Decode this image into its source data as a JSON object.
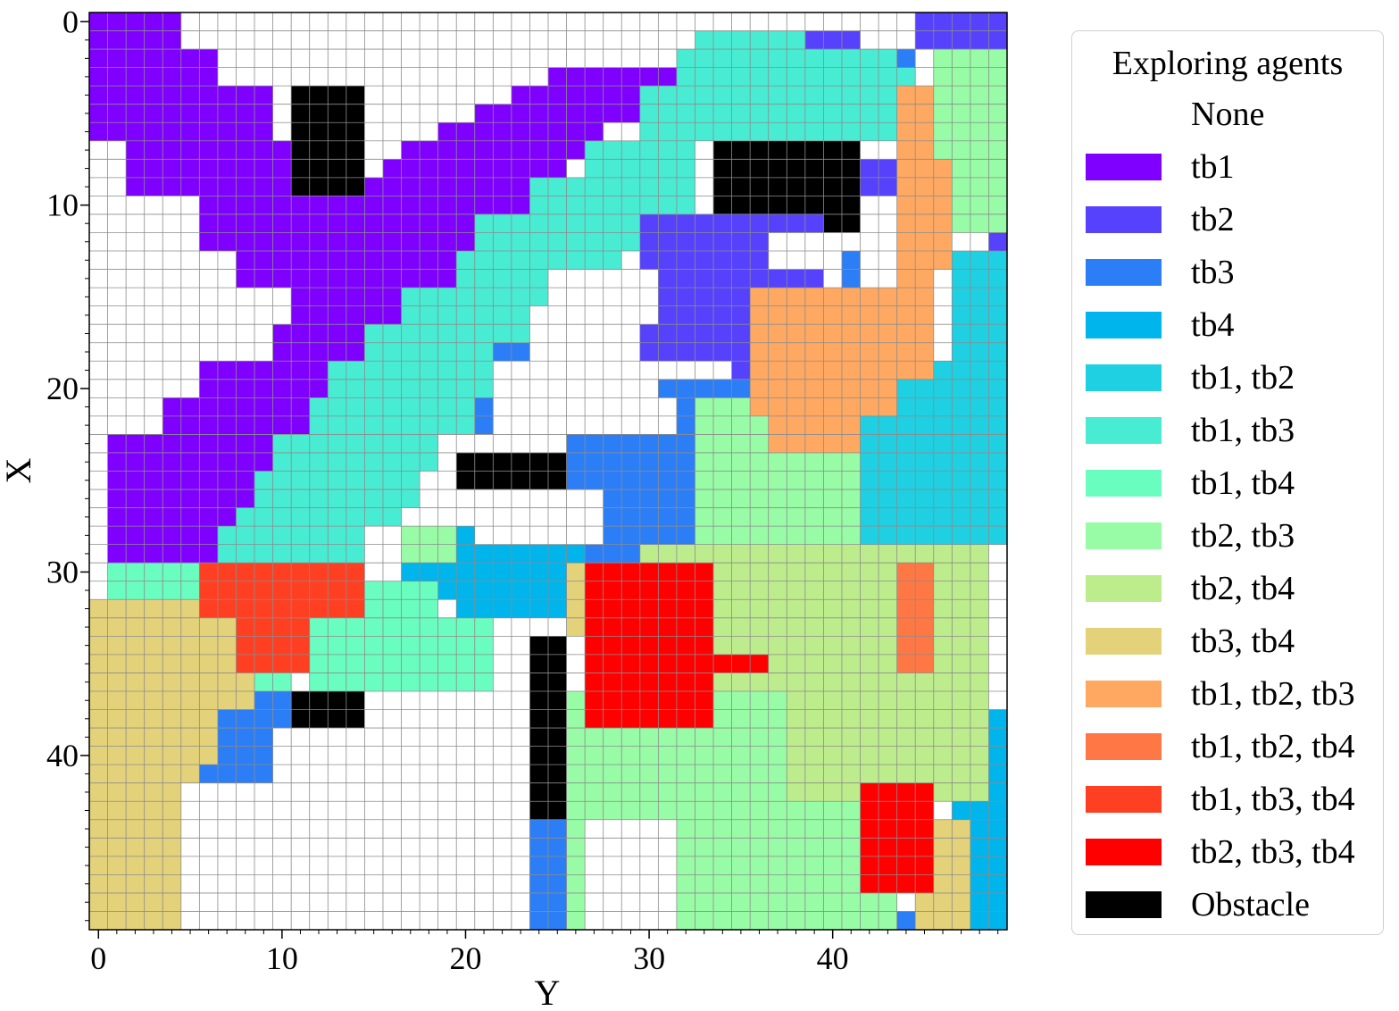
{
  "chart_data": {
    "type": "heatmap",
    "grid_size": [
      50,
      50
    ],
    "xlabel": "Y",
    "ylabel": "X",
    "xticks": [
      0,
      10,
      20,
      30,
      40
    ],
    "yticks": [
      0,
      10,
      20,
      30,
      40
    ],
    "grid": true,
    "legend": {
      "title": "Exploring agents",
      "placement": "outside-right",
      "entries": [
        {
          "label": "None",
          "color": "#ffffff"
        },
        {
          "label": "tb1",
          "color": "#8000ff"
        },
        {
          "label": "tb2",
          "color": "#5641fd"
        },
        {
          "label": "tb3",
          "color": "#2c7ef7"
        },
        {
          "label": "tb4",
          "color": "#00b5eb"
        },
        {
          "label": "tb1, tb2",
          "color": "#1ed0e2"
        },
        {
          "label": "tb1, tb3",
          "color": "#48ecd3"
        },
        {
          "label": "tb1, tb4",
          "color": "#6afdc0"
        },
        {
          "label": "tb2, tb3",
          "color": "#98fca6"
        },
        {
          "label": "tb2, tb4",
          "color": "#bdec8c"
        },
        {
          "label": "tb3, tb4",
          "color": "#e3d27a"
        },
        {
          "label": "tb1, tb2, tb3",
          "color": "#ffa861"
        },
        {
          "label": "tb1, tb2, tb4",
          "color": "#ff7744"
        },
        {
          "label": "tb1, tb3, tb4",
          "color": "#ff3f22"
        },
        {
          "label": "tb2, tb3, tb4",
          "color": "#ff0000"
        },
        {
          "label": "Obstacle",
          "color": "#000000"
        }
      ]
    },
    "regions_note": "cells listed as [row_start,row_end,col_start,col_end] inclusive, value = legend index",
    "regions": [
      [
        0,
        4,
        0,
        4,
        1
      ],
      [
        0,
        5,
        5,
        5,
        1
      ],
      [
        1,
        6,
        6,
        6,
        1
      ],
      [
        2,
        7,
        7,
        7,
        1
      ],
      [
        3,
        8,
        8,
        8,
        1
      ],
      [
        4,
        9,
        9,
        9,
        1
      ],
      [
        5,
        6,
        0,
        8,
        1
      ],
      [
        7,
        9,
        2,
        10,
        1
      ],
      [
        10,
        12,
        6,
        28,
        1
      ],
      [
        9,
        9,
        10,
        24,
        1
      ],
      [
        8,
        8,
        15,
        25,
        1
      ],
      [
        7,
        7,
        17,
        26,
        1
      ],
      [
        6,
        6,
        19,
        27,
        1
      ],
      [
        5,
        5,
        21,
        29,
        1
      ],
      [
        4,
        4,
        23,
        30,
        1
      ],
      [
        3,
        3,
        25,
        31,
        1
      ],
      [
        13,
        14,
        8,
        25,
        1
      ],
      [
        15,
        16,
        11,
        22,
        1
      ],
      [
        17,
        18,
        10,
        20,
        1
      ],
      [
        19,
        20,
        6,
        18,
        1
      ],
      [
        21,
        22,
        4,
        15,
        1
      ],
      [
        23,
        29,
        1,
        13,
        1
      ],
      [
        30,
        30,
        1,
        1,
        1
      ],
      [
        1,
        1,
        33,
        40,
        6
      ],
      [
        2,
        3,
        32,
        44,
        6
      ],
      [
        4,
        6,
        30,
        44,
        6
      ],
      [
        7,
        8,
        27,
        32,
        6
      ],
      [
        9,
        10,
        24,
        32,
        6
      ],
      [
        11,
        12,
        21,
        31,
        6
      ],
      [
        13,
        14,
        20,
        28,
        6
      ],
      [
        15,
        16,
        17,
        26,
        6
      ],
      [
        17,
        18,
        15,
        24,
        6
      ],
      [
        19,
        20,
        13,
        22,
        6
      ],
      [
        21,
        22,
        12,
        21,
        6
      ],
      [
        23,
        24,
        10,
        18,
        6
      ],
      [
        25,
        26,
        9,
        17,
        6
      ],
      [
        27,
        27,
        8,
        16,
        6
      ],
      [
        28,
        29,
        7,
        14,
        6
      ],
      [
        7,
        11,
        34,
        41,
        15
      ],
      [
        4,
        9,
        11,
        14,
        15
      ],
      [
        24,
        25,
        20,
        27,
        15
      ],
      [
        37,
        38,
        7,
        14,
        15
      ],
      [
        34,
        43,
        24,
        25,
        15
      ],
      [
        33,
        42,
        39,
        40,
        15
      ],
      [
        0,
        1,
        45,
        49,
        2
      ],
      [
        1,
        1,
        39,
        41,
        2
      ],
      [
        8,
        9,
        42,
        43,
        2
      ],
      [
        11,
        18,
        30,
        39,
        2
      ],
      [
        19,
        19,
        35,
        35,
        2
      ],
      [
        26,
        28,
        37,
        42,
        2
      ],
      [
        35,
        36,
        46,
        47,
        2
      ],
      [
        12,
        12,
        49,
        49,
        2
      ],
      [
        18,
        18,
        48,
        48,
        2
      ],
      [
        35,
        42,
        38,
        38,
        2
      ],
      [
        2,
        2,
        44,
        44,
        3
      ],
      [
        13,
        14,
        41,
        41,
        3
      ],
      [
        15,
        16,
        40,
        41,
        3
      ],
      [
        18,
        20,
        22,
        23,
        3
      ],
      [
        21,
        22,
        21,
        21,
        3
      ],
      [
        23,
        29,
        26,
        33,
        3
      ],
      [
        20,
        26,
        31,
        35,
        3
      ],
      [
        36,
        49,
        6,
        10,
        3
      ],
      [
        41,
        44,
        3,
        5,
        3
      ],
      [
        44,
        49,
        24,
        26,
        3
      ],
      [
        49,
        49,
        0,
        4,
        3
      ],
      [
        49,
        49,
        34,
        36,
        3
      ],
      [
        49,
        49,
        43,
        44,
        3
      ],
      [
        28,
        32,
        20,
        26,
        4
      ],
      [
        30,
        31,
        17,
        23,
        4
      ],
      [
        32,
        46,
        0,
        1,
        4
      ],
      [
        32,
        34,
        2,
        4,
        4
      ],
      [
        38,
        49,
        48,
        49,
        4
      ],
      [
        41,
        44,
        47,
        47,
        4
      ],
      [
        13,
        28,
        47,
        49,
        5
      ],
      [
        19,
        28,
        42,
        46,
        5
      ],
      [
        21,
        25,
        40,
        42,
        5
      ],
      [
        24,
        27,
        44,
        46,
        5
      ],
      [
        30,
        33,
        1,
        5,
        7
      ],
      [
        33,
        36,
        12,
        21,
        7
      ],
      [
        31,
        33,
        14,
        18,
        7
      ],
      [
        36,
        36,
        7,
        10,
        7
      ],
      [
        21,
        28,
        33,
        39,
        8
      ],
      [
        37,
        49,
        26,
        38,
        8
      ],
      [
        42,
        49,
        39,
        43,
        8
      ],
      [
        2,
        11,
        46,
        49,
        8
      ],
      [
        23,
        28,
        40,
        41,
        8
      ],
      [
        28,
        29,
        17,
        19,
        8
      ],
      [
        29,
        42,
        38,
        48,
        9
      ],
      [
        29,
        36,
        30,
        37,
        9
      ],
      [
        34,
        36,
        29,
        33,
        9
      ],
      [
        36,
        39,
        41,
        47,
        9
      ],
      [
        32,
        49,
        0,
        5,
        10
      ],
      [
        34,
        40,
        2,
        6,
        10
      ],
      [
        30,
        33,
        26,
        30,
        10
      ],
      [
        32,
        37,
        6,
        8,
        10
      ],
      [
        44,
        49,
        45,
        47,
        10
      ],
      [
        4,
        16,
        44,
        45,
        11
      ],
      [
        8,
        13,
        46,
        46,
        11
      ],
      [
        15,
        21,
        36,
        43,
        11
      ],
      [
        20,
        23,
        37,
        41,
        11
      ],
      [
        16,
        19,
        42,
        45,
        11
      ],
      [
        30,
        35,
        44,
        45,
        12
      ],
      [
        30,
        32,
        6,
        14,
        13
      ],
      [
        32,
        35,
        8,
        11,
        13
      ],
      [
        30,
        38,
        27,
        33,
        14
      ],
      [
        35,
        35,
        33,
        36,
        14
      ],
      [
        42,
        47,
        42,
        45,
        14
      ]
    ],
    "white_override": [
      [
        0,
        1,
        5,
        8
      ],
      [
        1,
        3,
        7,
        9
      ],
      [
        4,
        6,
        12,
        14
      ],
      [
        5,
        8,
        14,
        15
      ],
      [
        19,
        20,
        22,
        29
      ],
      [
        16,
        18,
        24,
        29
      ],
      [
        14,
        16,
        25,
        30
      ],
      [
        21,
        22,
        24,
        31
      ],
      [
        26,
        28,
        21,
        27
      ],
      [
        12,
        13,
        37,
        40
      ],
      [
        35,
        37,
        23,
        24
      ],
      [
        39,
        49,
        10,
        23
      ],
      [
        42,
        49,
        5,
        9
      ],
      [
        44,
        49,
        27,
        31
      ]
    ]
  }
}
